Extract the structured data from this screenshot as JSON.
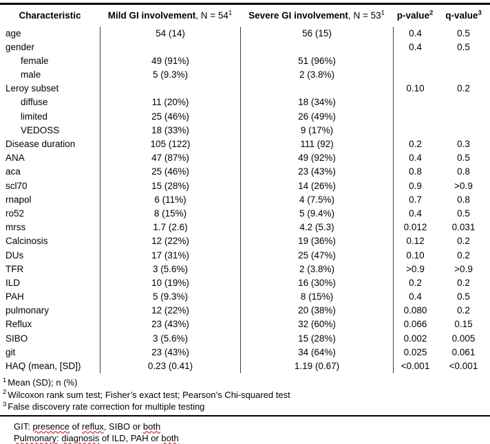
{
  "colors": {
    "text": "#000000",
    "rule": "#000000",
    "column_line": "#404040",
    "spellcheck_squiggle": "#c00000"
  },
  "table": {
    "header": {
      "characteristic": {
        "label": "Characteristic"
      },
      "mild": {
        "bold": "Mild GI involvement",
        "rest": ", N = 54",
        "sup": "1"
      },
      "severe": {
        "bold": "Severe GI involvement",
        "rest": ", N = 53",
        "sup": "1"
      },
      "p": {
        "label": "p-value",
        "sup": "2"
      },
      "q": {
        "label": "q-value",
        "sup": "3"
      }
    },
    "rows": [
      {
        "label": "age",
        "indent": false,
        "mild": "54 (14)",
        "severe": "56 (15)",
        "p": "0.4",
        "q": "0.5"
      },
      {
        "label": "gender",
        "indent": false,
        "mild": "",
        "severe": "",
        "p": "0.4",
        "q": "0.5"
      },
      {
        "label": "female",
        "indent": true,
        "mild": "49 (91%)",
        "severe": "51 (96%)",
        "p": "",
        "q": ""
      },
      {
        "label": "male",
        "indent": true,
        "mild": "5 (9.3%)",
        "severe": "2 (3.8%)",
        "p": "",
        "q": ""
      },
      {
        "label": "Leroy subset",
        "indent": false,
        "mild": "",
        "severe": "",
        "p": "0.10",
        "q": "0.2"
      },
      {
        "label": "diffuse",
        "indent": true,
        "mild": "11 (20%)",
        "severe": "18 (34%)",
        "p": "",
        "q": ""
      },
      {
        "label": "limited",
        "indent": true,
        "mild": "25 (46%)",
        "severe": "26 (49%)",
        "p": "",
        "q": ""
      },
      {
        "label": "VEDOSS",
        "indent": true,
        "mild": "18 (33%)",
        "severe": "9 (17%)",
        "p": "",
        "q": ""
      },
      {
        "label": "Disease duration",
        "indent": false,
        "mild": "105 (122)",
        "severe": "111 (92)",
        "p": "0.2",
        "q": "0.3"
      },
      {
        "label": "ANA",
        "indent": false,
        "mild": "47 (87%)",
        "severe": "49 (92%)",
        "p": "0.4",
        "q": "0.5"
      },
      {
        "label": "aca",
        "indent": false,
        "mild": "25 (46%)",
        "severe": "23 (43%)",
        "p": "0.8",
        "q": "0.8"
      },
      {
        "label": "scl70",
        "indent": false,
        "mild": "15 (28%)",
        "severe": "14 (26%)",
        "p": "0.9",
        "q": ">0.9"
      },
      {
        "label": "rnapol",
        "indent": false,
        "mild": "6 (11%)",
        "severe": "4 (7.5%)",
        "p": "0.7",
        "q": "0.8"
      },
      {
        "label": "ro52",
        "indent": false,
        "mild": "8 (15%)",
        "severe": "5 (9.4%)",
        "p": "0.4",
        "q": "0.5"
      },
      {
        "label": "mrss",
        "indent": false,
        "mild": "1.7 (2.6)",
        "severe": "4.2 (5.3)",
        "p": "0.012",
        "q": "0.031"
      },
      {
        "label": "Calcinosis",
        "indent": false,
        "mild": "12 (22%)",
        "severe": "19 (36%)",
        "p": "0.12",
        "q": "0.2"
      },
      {
        "label": "DUs",
        "indent": false,
        "mild": "17 (31%)",
        "severe": "25 (47%)",
        "p": "0.10",
        "q": "0.2"
      },
      {
        "label": "TFR",
        "indent": false,
        "mild": "3 (5.6%)",
        "severe": "2 (3.8%)",
        "p": ">0.9",
        "q": ">0.9"
      },
      {
        "label": "ILD",
        "indent": false,
        "mild": "10 (19%)",
        "severe": "16 (30%)",
        "p": "0.2",
        "q": "0.2"
      },
      {
        "label": "PAH",
        "indent": false,
        "mild": "5 (9.3%)",
        "severe": "8 (15%)",
        "p": "0.4",
        "q": "0.5"
      },
      {
        "label": "pulmonary",
        "indent": false,
        "mild": "12 (22%)",
        "severe": "20 (38%)",
        "p": "0.080",
        "q": "0.2"
      },
      {
        "label": "Reflux",
        "indent": false,
        "mild": "23 (43%)",
        "severe": "32 (60%)",
        "p": "0.066",
        "q": "0.15"
      },
      {
        "label": "SIBO",
        "indent": false,
        "mild": "3 (5.6%)",
        "severe": "15 (28%)",
        "p": "0.002",
        "q": "0.005"
      },
      {
        "label": "git",
        "indent": false,
        "mild": "23 (43%)",
        "severe": "34 (64%)",
        "p": "0.025",
        "q": "0.061"
      },
      {
        "label": "HAQ (mean, [SD])",
        "indent": false,
        "mild": "0.23 (0.41)",
        "severe": "1.19 (0.67)",
        "p": "<0.001",
        "q": "<0.001"
      }
    ],
    "footnotes": [
      {
        "sup": "1",
        "text": "Mean (SD); n (%)"
      },
      {
        "sup": "2",
        "text": "Wilcoxon rank sum test; Fisher’s exact test; Pearson’s Chi-squared test"
      },
      {
        "sup": "3",
        "text": "False discovery rate correction for multiple testing"
      }
    ]
  },
  "notes": {
    "lines": [
      {
        "segments": [
          {
            "text": "GIT: ",
            "squiggle": false
          },
          {
            "text": "presence",
            "squiggle": true
          },
          {
            "text": " of ",
            "squiggle": false
          },
          {
            "text": "reflux",
            "squiggle": true
          },
          {
            "text": ", SIBO or ",
            "squiggle": false
          },
          {
            "text": "both",
            "squiggle": true
          }
        ]
      },
      {
        "segments": [
          {
            "text": "Pulmonary:",
            "squiggle": true
          },
          {
            "text": " ",
            "squiggle": false
          },
          {
            "text": "diagnosis",
            "squiggle": true
          },
          {
            "text": " of ILD, PAH or ",
            "squiggle": false
          },
          {
            "text": "both",
            "squiggle": true
          }
        ]
      }
    ]
  }
}
